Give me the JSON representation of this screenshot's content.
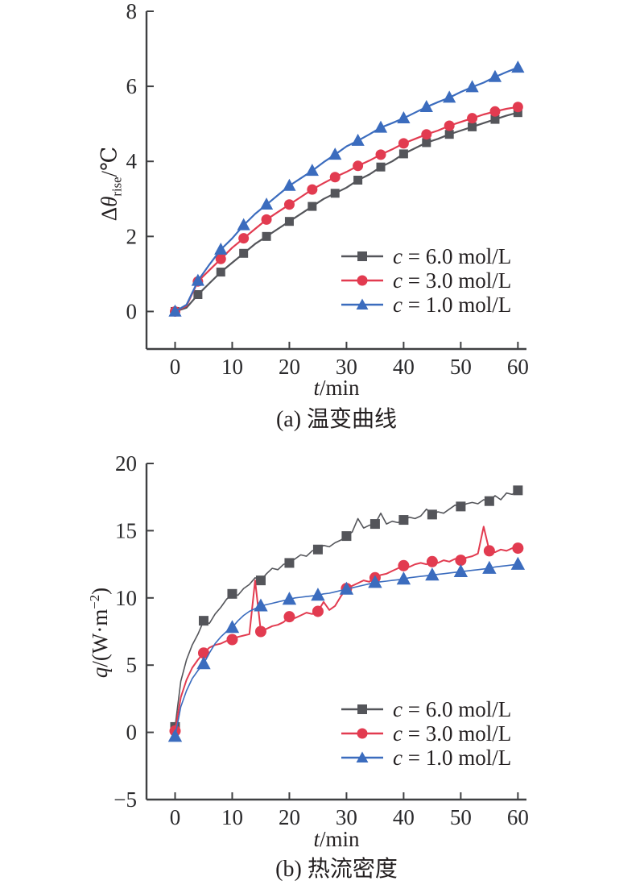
{
  "figure": {
    "background": "#ffffff",
    "text_color": "#231f20",
    "axis_color": "#3f4042"
  },
  "chart_data": [
    {
      "id": "a",
      "type": "line",
      "title": "(a) 温变曲线",
      "xlabel": {
        "var": "t",
        "rest": "/min"
      },
      "ylabel": {
        "prefix": "Δ",
        "var": "θ",
        "sub": "rise",
        "rest": "/℃"
      },
      "xlim": [
        -5,
        61.5
      ],
      "ylim": [
        -1,
        8
      ],
      "xticks": [
        0,
        10,
        20,
        30,
        40,
        50,
        60
      ],
      "yticks": [
        0,
        2,
        4,
        6,
        8
      ],
      "grid": false,
      "legend_position": "inside-lower-right",
      "series": [
        {
          "name": "c = 6.0 mol/L",
          "legend": {
            "var": "c",
            "rest": " = 6.0 mol/L"
          },
          "color": "#54555a",
          "marker": "square",
          "marker_size": 11,
          "line_width": 2.2,
          "marker_every": 2,
          "x": [
            0,
            2,
            4,
            6,
            8,
            10,
            12,
            14,
            16,
            18,
            20,
            22,
            24,
            26,
            28,
            30,
            32,
            34,
            36,
            38,
            40,
            42,
            44,
            46,
            48,
            50,
            52,
            54,
            56,
            58,
            60
          ],
          "y": [
            0,
            0.1,
            0.45,
            0.75,
            1.05,
            1.3,
            1.55,
            1.8,
            2.0,
            2.2,
            2.4,
            2.6,
            2.8,
            3.0,
            3.15,
            3.3,
            3.5,
            3.65,
            3.85,
            4.0,
            4.2,
            4.35,
            4.5,
            4.6,
            4.72,
            4.82,
            4.92,
            5.02,
            5.12,
            5.22,
            5.3
          ]
        },
        {
          "name": "c = 3.0 mol/L",
          "legend": {
            "var": "c",
            "rest": " = 3.0 mol/L"
          },
          "color": "#e23b50",
          "marker": "circle",
          "marker_size": 13,
          "line_width": 2.2,
          "marker_every": 2,
          "x": [
            0,
            2,
            4,
            6,
            8,
            10,
            12,
            14,
            16,
            18,
            20,
            22,
            24,
            26,
            28,
            30,
            32,
            34,
            36,
            38,
            40,
            42,
            44,
            46,
            48,
            50,
            52,
            54,
            56,
            58,
            60
          ],
          "y": [
            0,
            0.15,
            0.8,
            1.1,
            1.4,
            1.7,
            1.95,
            2.2,
            2.45,
            2.65,
            2.85,
            3.05,
            3.25,
            3.42,
            3.58,
            3.72,
            3.88,
            4.02,
            4.18,
            4.32,
            4.48,
            4.6,
            4.72,
            4.82,
            4.95,
            5.05,
            5.15,
            5.25,
            5.33,
            5.4,
            5.45
          ]
        },
        {
          "name": "c = 1.0 mol/L",
          "legend": {
            "var": "c",
            "rest": " = 1.0 mol/L"
          },
          "color": "#3b6cbe",
          "marker": "triangle",
          "marker_size": 14,
          "line_width": 2.2,
          "marker_every": 2,
          "x": [
            0,
            2,
            4,
            6,
            8,
            10,
            12,
            14,
            16,
            18,
            20,
            22,
            24,
            26,
            28,
            30,
            32,
            34,
            36,
            38,
            40,
            42,
            44,
            46,
            48,
            50,
            52,
            54,
            56,
            58,
            60
          ],
          "y": [
            0,
            0.18,
            0.82,
            1.25,
            1.65,
            1.95,
            2.3,
            2.6,
            2.85,
            3.1,
            3.35,
            3.55,
            3.75,
            3.98,
            4.18,
            4.4,
            4.55,
            4.72,
            4.9,
            5.02,
            5.15,
            5.3,
            5.45,
            5.58,
            5.7,
            5.85,
            5.98,
            6.1,
            6.25,
            6.38,
            6.5
          ]
        }
      ]
    },
    {
      "id": "b",
      "type": "line",
      "title": "(b) 热流密度",
      "xlabel": {
        "var": "t",
        "rest": "/min"
      },
      "ylabel": {
        "var": "q",
        "rest": "/(W·m",
        "sup": "−2",
        "post": ")"
      },
      "xlim": [
        -5,
        61.5
      ],
      "ylim": [
        -5,
        20
      ],
      "xticks": [
        0,
        10,
        20,
        30,
        40,
        50,
        60
      ],
      "yticks": [
        -5,
        0,
        5,
        10,
        15,
        20
      ],
      "grid": false,
      "legend_position": "inside-lower-right",
      "series": [
        {
          "name": "c = 6.0 mol/L",
          "legend": {
            "var": "c",
            "rest": " = 6.0 mol/L"
          },
          "color": "#54555a",
          "marker": "square",
          "marker_size": 12,
          "line_width": 1.6,
          "marker_every": 5,
          "x": [
            0,
            1,
            2,
            3,
            4,
            5,
            6,
            7,
            8,
            9,
            10,
            11,
            12,
            13,
            14,
            15,
            16,
            17,
            18,
            19,
            20,
            21,
            22,
            23,
            24,
            25,
            26,
            27,
            28,
            29,
            30,
            31,
            32,
            33,
            34,
            35,
            36,
            37,
            38,
            39,
            40,
            41,
            42,
            43,
            44,
            45,
            46,
            47,
            48,
            49,
            50,
            51,
            52,
            53,
            54,
            55,
            56,
            57,
            58,
            59,
            60
          ],
          "y": [
            0.4,
            3.8,
            5.4,
            6.5,
            7.3,
            8.3,
            8.1,
            8.8,
            9.3,
            9.9,
            10.3,
            10.2,
            10.7,
            11.0,
            11.5,
            11.3,
            11.8,
            12.2,
            12.1,
            12.5,
            12.6,
            12.9,
            13.2,
            13.1,
            13.5,
            13.6,
            13.9,
            13.8,
            14.1,
            14.3,
            14.6,
            14.9,
            15.9,
            15.2,
            15.4,
            15.5,
            16.3,
            15.5,
            15.7,
            15.6,
            15.8,
            16.0,
            15.9,
            16.1,
            16.6,
            16.2,
            16.4,
            16.3,
            16.6,
            16.9,
            16.8,
            17.0,
            17.1,
            17.0,
            17.3,
            17.2,
            17.6,
            17.3,
            17.8,
            17.7,
            18.0
          ]
        },
        {
          "name": "c = 3.0 mol/L",
          "legend": {
            "var": "c",
            "rest": " = 3.0 mol/L"
          },
          "color": "#e23b50",
          "marker": "circle",
          "marker_size": 14,
          "line_width": 2.0,
          "marker_every": 5,
          "x": [
            0,
            1,
            2,
            3,
            4,
            5,
            6,
            7,
            8,
            9,
            10,
            11,
            12,
            13,
            14,
            15,
            16,
            17,
            18,
            19,
            20,
            21,
            22,
            23,
            24,
            25,
            26,
            27,
            28,
            29,
            30,
            31,
            32,
            33,
            34,
            35,
            36,
            37,
            38,
            39,
            40,
            41,
            42,
            43,
            44,
            45,
            46,
            47,
            48,
            49,
            50,
            51,
            52,
            53,
            54,
            55,
            56,
            57,
            58,
            59,
            60
          ],
          "y": [
            0.1,
            2.6,
            3.9,
            4.8,
            5.4,
            5.9,
            6.3,
            6.5,
            6.6,
            6.8,
            6.9,
            7.1,
            7.2,
            7.3,
            11.3,
            7.5,
            7.7,
            7.9,
            8.0,
            8.2,
            8.6,
            8.5,
            8.7,
            8.9,
            8.8,
            9.0,
            9.7,
            9.1,
            9.4,
            10.1,
            10.7,
            10.9,
            11.1,
            11.3,
            11.2,
            11.5,
            11.7,
            11.8,
            12.0,
            12.2,
            12.4,
            12.3,
            12.5,
            12.6,
            12.5,
            12.7,
            12.6,
            12.8,
            12.7,
            12.9,
            12.8,
            13.0,
            13.1,
            13.3,
            15.3,
            13.5,
            13.4,
            13.6,
            13.5,
            13.7,
            13.7
          ]
        },
        {
          "name": "c = 1.0 mol/L",
          "legend": {
            "var": "c",
            "rest": " = 1.0 mol/L"
          },
          "color": "#3b6cbe",
          "marker": "triangle",
          "marker_size": 15,
          "line_width": 1.6,
          "marker_every": 5,
          "x": [
            0,
            1,
            2,
            3,
            4,
            5,
            6,
            7,
            8,
            9,
            10,
            11,
            12,
            13,
            14,
            15,
            16,
            17,
            18,
            19,
            20,
            21,
            22,
            23,
            24,
            25,
            26,
            27,
            28,
            29,
            30,
            31,
            32,
            33,
            34,
            35,
            36,
            37,
            38,
            39,
            40,
            41,
            42,
            43,
            44,
            45,
            46,
            47,
            48,
            49,
            50,
            51,
            52,
            53,
            54,
            55,
            56,
            57,
            58,
            59,
            60
          ],
          "y": [
            -0.3,
            1.9,
            3.1,
            4.0,
            4.6,
            5.1,
            5.9,
            6.6,
            7.1,
            7.5,
            7.8,
            8.3,
            8.7,
            9.0,
            9.2,
            9.4,
            9.5,
            9.6,
            9.7,
            9.8,
            9.9,
            10.0,
            10.05,
            10.1,
            10.15,
            10.2,
            10.3,
            10.35,
            10.45,
            10.55,
            10.65,
            10.75,
            10.85,
            10.95,
            11.05,
            11.15,
            11.2,
            11.25,
            11.3,
            11.35,
            11.4,
            11.5,
            11.55,
            11.6,
            11.65,
            11.7,
            11.75,
            11.8,
            11.85,
            11.9,
            11.95,
            12.0,
            12.05,
            12.1,
            12.15,
            12.2,
            12.3,
            12.35,
            12.4,
            12.45,
            12.5
          ]
        }
      ]
    }
  ]
}
